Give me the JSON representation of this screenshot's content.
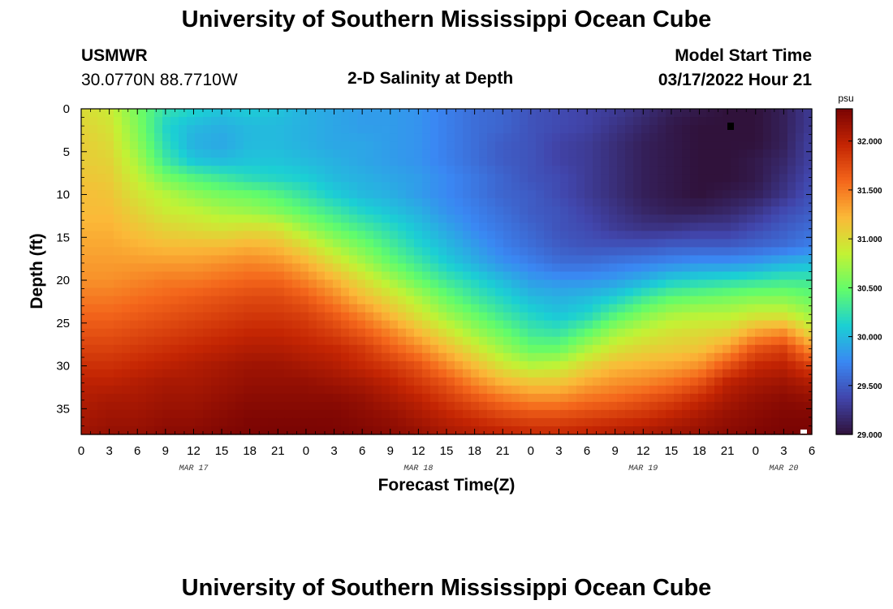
{
  "page": {
    "title_top": "University of Southern Mississippi Ocean Cube",
    "title_bottom": "University of Southern Mississippi Ocean Cube",
    "station_name": "USMWR",
    "station_coords": "30.0770N  88.7710W",
    "plot_title": "2-D Salinity at Depth",
    "model_start_label": "Model Start Time",
    "model_start_value": "03/17/2022 Hour 21"
  },
  "colors": {
    "colormap": [
      "#30123b",
      "#4145ab",
      "#3a87f3",
      "#1bcfd4",
      "#62fc6b",
      "#c3f234",
      "#fbb938",
      "#f4661b",
      "#c42503",
      "#7a0403"
    ]
  },
  "chart_data": {
    "type": "heatmap",
    "title": "2-D Salinity at Depth",
    "xlabel": "Forecast Time(Z)",
    "ylabel": "Depth (ft)",
    "colorbar_unit": "psu",
    "colorbar_range": [
      29.0,
      32.33
    ],
    "colorbar_ticks": [
      "32.000",
      "31.500",
      "31.000",
      "30.500",
      "30.000",
      "29.500",
      "29.000"
    ],
    "colorbar_tick_values": [
      32.0,
      31.5,
      31.0,
      30.5,
      30.0,
      29.5,
      29.0
    ],
    "x_range_hours": [
      0,
      78
    ],
    "x_tick_hours": [
      0,
      3,
      6,
      9,
      12,
      15,
      18,
      21,
      24,
      27,
      30,
      33,
      36,
      39,
      42,
      45,
      48,
      51,
      54,
      57,
      60,
      63,
      66,
      69,
      72,
      75,
      78
    ],
    "x_tick_labels": [
      "0",
      "3",
      "6",
      "9",
      "12",
      "15",
      "18",
      "21",
      "0",
      "3",
      "6",
      "9",
      "12",
      "15",
      "18",
      "21",
      "0",
      "3",
      "6",
      "9",
      "12",
      "15",
      "18",
      "21",
      "0",
      "3",
      "6"
    ],
    "date_labels": [
      {
        "text": "MAR 17",
        "hour": 12
      },
      {
        "text": "MAR 18",
        "hour": 36
      },
      {
        "text": "MAR 19",
        "hour": 60
      },
      {
        "text": "MAR 20",
        "hour": 75
      }
    ],
    "y_range_ft": [
      0,
      38
    ],
    "y_tick_values": [
      0,
      5,
      10,
      15,
      20,
      25,
      30,
      35
    ],
    "y_tick_labels": [
      "0",
      "5",
      "10",
      "15",
      "20",
      "25",
      "30",
      "35"
    ],
    "grid_hours": [
      0,
      3,
      6,
      9,
      12,
      15,
      18,
      21,
      24,
      27,
      30,
      33,
      36,
      39,
      42,
      45,
      48,
      51,
      54,
      57,
      60,
      63,
      66,
      69,
      72,
      75,
      78
    ],
    "grid_depths_ft": [
      0,
      2,
      4,
      6,
      8,
      10,
      12,
      14,
      16,
      18,
      20,
      22,
      24,
      26,
      28,
      30,
      32,
      34,
      36,
      38
    ],
    "salinity_psu": [
      [
        31.0,
        30.9,
        30.55,
        30.25,
        30.15,
        30.05,
        30.1,
        30.05,
        29.95,
        29.9,
        29.85,
        29.85,
        29.8,
        29.7,
        29.6,
        29.55,
        29.45,
        29.4,
        29.35,
        29.3,
        29.2,
        29.1,
        29.05,
        29.0,
        29.0,
        29.1,
        29.3
      ],
      [
        31.05,
        30.95,
        30.6,
        30.15,
        30.0,
        29.95,
        30.0,
        30.0,
        29.95,
        29.9,
        29.85,
        29.85,
        29.8,
        29.7,
        29.6,
        29.55,
        29.45,
        29.4,
        29.35,
        29.25,
        29.15,
        29.05,
        29.0,
        29.0,
        29.0,
        29.1,
        29.3
      ],
      [
        31.1,
        31.0,
        30.65,
        30.2,
        29.95,
        29.9,
        30.0,
        30.0,
        29.95,
        29.9,
        29.9,
        29.85,
        29.8,
        29.7,
        29.6,
        29.5,
        29.45,
        29.35,
        29.3,
        29.2,
        29.1,
        29.05,
        29.0,
        29.0,
        29.0,
        29.1,
        29.35
      ],
      [
        31.1,
        31.05,
        30.75,
        30.3,
        30.05,
        30.0,
        30.05,
        30.05,
        30.0,
        29.95,
        29.9,
        29.85,
        29.8,
        29.7,
        29.6,
        29.5,
        29.45,
        29.35,
        29.3,
        29.2,
        29.1,
        29.05,
        29.0,
        29.0,
        29.05,
        29.15,
        29.35
      ],
      [
        31.15,
        31.1,
        30.85,
        30.55,
        30.4,
        30.3,
        30.2,
        30.15,
        30.1,
        30.0,
        29.95,
        29.9,
        29.85,
        29.75,
        29.65,
        29.55,
        29.45,
        29.4,
        29.3,
        29.2,
        29.1,
        29.05,
        29.0,
        29.0,
        29.05,
        29.2,
        29.4
      ],
      [
        31.2,
        31.15,
        30.95,
        30.8,
        30.65,
        30.55,
        30.5,
        30.4,
        30.25,
        30.1,
        30.0,
        29.95,
        29.85,
        29.75,
        29.65,
        29.55,
        29.5,
        29.4,
        29.3,
        29.2,
        29.1,
        29.05,
        29.0,
        29.05,
        29.1,
        29.25,
        29.45
      ],
      [
        31.2,
        31.2,
        31.05,
        30.9,
        30.85,
        30.75,
        30.7,
        30.6,
        30.45,
        30.3,
        30.15,
        30.05,
        29.95,
        29.8,
        29.7,
        29.6,
        29.5,
        29.45,
        29.35,
        29.25,
        29.15,
        29.1,
        29.1,
        29.15,
        29.25,
        29.4,
        29.5
      ],
      [
        31.25,
        31.25,
        31.15,
        31.05,
        31.0,
        30.95,
        31.0,
        30.95,
        30.7,
        30.5,
        30.35,
        30.2,
        30.05,
        29.9,
        29.75,
        29.65,
        29.55,
        29.45,
        29.4,
        29.3,
        29.25,
        29.25,
        29.3,
        29.3,
        29.4,
        29.5,
        29.6
      ],
      [
        31.3,
        31.3,
        31.25,
        31.2,
        31.2,
        31.2,
        31.25,
        31.2,
        31.0,
        30.75,
        30.55,
        30.35,
        30.15,
        30.0,
        29.85,
        29.7,
        29.6,
        29.5,
        29.45,
        29.45,
        29.45,
        29.5,
        29.5,
        29.5,
        29.55,
        29.6,
        29.7
      ],
      [
        31.35,
        31.35,
        31.35,
        31.35,
        31.35,
        31.4,
        31.45,
        31.4,
        31.25,
        31.0,
        30.75,
        30.5,
        30.3,
        30.1,
        29.95,
        29.8,
        29.7,
        29.6,
        29.6,
        29.65,
        29.7,
        29.75,
        29.8,
        29.8,
        29.85,
        29.95,
        30.0
      ],
      [
        31.4,
        31.4,
        31.45,
        31.5,
        31.5,
        31.55,
        31.6,
        31.6,
        31.45,
        31.25,
        31.0,
        30.75,
        30.5,
        30.3,
        30.15,
        30.0,
        29.85,
        29.8,
        29.8,
        29.85,
        29.95,
        30.1,
        30.15,
        30.2,
        30.25,
        30.3,
        30.3
      ],
      [
        31.5,
        31.5,
        31.55,
        31.6,
        31.65,
        31.7,
        31.75,
        31.75,
        31.65,
        31.45,
        31.2,
        31.0,
        30.75,
        30.5,
        30.3,
        30.15,
        30.0,
        29.95,
        30.0,
        30.1,
        30.3,
        30.45,
        30.5,
        30.55,
        30.6,
        30.6,
        30.5
      ],
      [
        31.6,
        31.6,
        31.65,
        31.7,
        31.75,
        31.8,
        31.85,
        31.85,
        31.8,
        31.65,
        31.45,
        31.2,
        30.95,
        30.7,
        30.5,
        30.3,
        30.15,
        30.05,
        30.15,
        30.4,
        30.6,
        30.75,
        30.8,
        30.8,
        30.9,
        30.9,
        30.7
      ],
      [
        31.7,
        31.7,
        31.75,
        31.8,
        31.85,
        31.9,
        31.95,
        31.95,
        31.9,
        31.8,
        31.65,
        31.45,
        31.2,
        30.95,
        30.7,
        30.5,
        30.3,
        30.25,
        30.45,
        30.7,
        30.85,
        30.95,
        31.0,
        31.05,
        31.3,
        31.4,
        31.0
      ],
      [
        31.8,
        31.8,
        31.85,
        31.9,
        31.95,
        32.0,
        32.05,
        32.05,
        32.0,
        31.95,
        31.85,
        31.65,
        31.45,
        31.2,
        30.95,
        30.7,
        30.5,
        30.5,
        30.75,
        30.95,
        31.05,
        31.1,
        31.15,
        31.35,
        31.7,
        31.8,
        31.4
      ],
      [
        31.9,
        31.9,
        31.95,
        32.0,
        32.05,
        32.1,
        32.15,
        32.15,
        32.1,
        32.05,
        31.95,
        31.85,
        31.7,
        31.45,
        31.2,
        30.95,
        30.8,
        30.85,
        31.05,
        31.2,
        31.25,
        31.3,
        31.4,
        31.7,
        31.95,
        32.0,
        31.8
      ],
      [
        32.0,
        32.0,
        32.05,
        32.1,
        32.1,
        32.15,
        32.2,
        32.2,
        32.2,
        32.15,
        32.1,
        32.0,
        31.85,
        31.7,
        31.45,
        31.25,
        31.15,
        31.15,
        31.3,
        31.4,
        31.45,
        31.55,
        31.7,
        32.0,
        32.1,
        32.15,
        32.05
      ],
      [
        32.05,
        32.1,
        32.1,
        32.15,
        32.15,
        32.2,
        32.25,
        32.25,
        32.25,
        32.25,
        32.2,
        32.1,
        32.0,
        31.85,
        31.7,
        31.55,
        31.45,
        31.45,
        31.55,
        31.6,
        31.7,
        31.8,
        31.95,
        32.1,
        32.2,
        32.25,
        32.2
      ],
      [
        32.1,
        32.15,
        32.15,
        32.2,
        32.2,
        32.25,
        32.3,
        32.3,
        32.3,
        32.3,
        32.25,
        32.2,
        32.1,
        32.0,
        31.9,
        31.8,
        31.75,
        31.75,
        31.8,
        31.85,
        31.9,
        32.0,
        32.1,
        32.2,
        32.25,
        32.3,
        32.3
      ],
      [
        32.15,
        32.2,
        32.2,
        32.25,
        32.25,
        32.3,
        32.32,
        32.33,
        32.33,
        32.32,
        32.3,
        32.25,
        32.2,
        32.1,
        32.05,
        32.0,
        31.95,
        31.95,
        32.0,
        32.05,
        32.1,
        32.15,
        32.2,
        32.25,
        32.3,
        32.33,
        32.33
      ]
    ]
  }
}
